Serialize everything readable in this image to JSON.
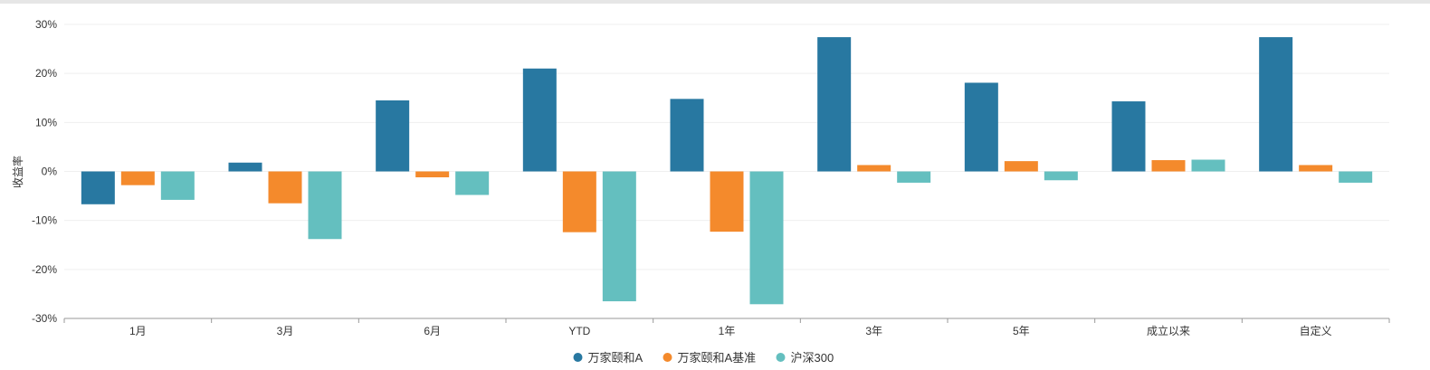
{
  "chart_data": {
    "type": "bar",
    "ylabel": "收益率",
    "ylim": [
      -30,
      30
    ],
    "yticks": [
      30,
      20,
      10,
      0,
      -10,
      -20,
      -30
    ],
    "ytick_labels": [
      "30%",
      "20%",
      "10%",
      "0%",
      "-10%",
      "-20%",
      "-30%"
    ],
    "categories": [
      "1月",
      "3月",
      "6月",
      "YTD",
      "1年",
      "3年",
      "5年",
      "成立以来",
      "自定义"
    ],
    "series": [
      {
        "name": "万家颐和A",
        "color": "#2878a1",
        "values": [
          -6.7,
          1.8,
          14.5,
          21.0,
          14.8,
          27.4,
          18.1,
          14.3,
          27.4
        ]
      },
      {
        "name": "万家颐和A基准",
        "color": "#f48a2c",
        "values": [
          -2.8,
          -6.5,
          -1.2,
          -12.4,
          -12.3,
          1.3,
          2.1,
          2.3,
          1.3
        ]
      },
      {
        "name": "沪深300",
        "color": "#64bfbf",
        "values": [
          -5.8,
          -13.8,
          -4.8,
          -26.5,
          -27.1,
          -2.3,
          -1.8,
          2.4,
          -2.3
        ]
      }
    ],
    "grid": true,
    "legend_position": "bottom-center"
  }
}
